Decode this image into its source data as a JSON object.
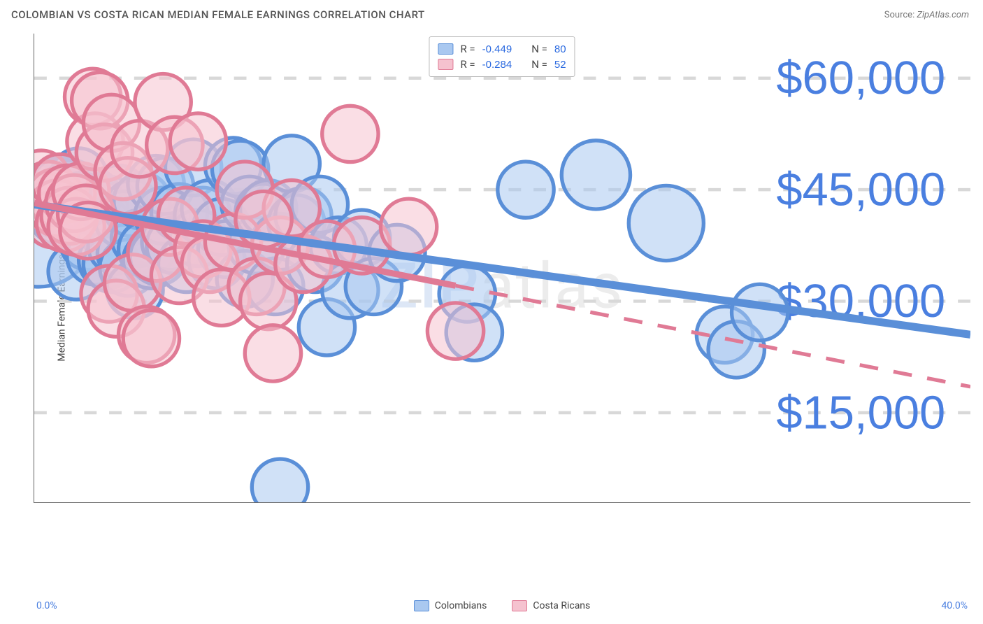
{
  "title": "COLOMBIAN VS COSTA RICAN MEDIAN FEMALE EARNINGS CORRELATION CHART",
  "source_label": "Source:",
  "source_value": "ZipAtlas.com",
  "ylabel": "Median Female Earnings",
  "watermark": {
    "first": "ZIP",
    "rest": "atlas"
  },
  "chart": {
    "type": "scatter",
    "background_color": "#ffffff",
    "grid_color": "#d8d8d8",
    "grid_dash": "4 4",
    "axis_color": "#666666",
    "xlim": [
      0,
      40
    ],
    "ylim": [
      3000,
      66000
    ],
    "y_ticks": [
      15000,
      30000,
      45000,
      60000
    ],
    "y_tick_labels": [
      "$15,000",
      "$30,000",
      "$45,000",
      "$60,000"
    ],
    "y_tick_color": "#4a7fe0",
    "x_tick_min_label": "0.0%",
    "x_tick_max_label": "40.0%",
    "x_tick_color": "#4a7fe0",
    "marker_opacity": 0.55,
    "marker_stroke_width": 1.2,
    "default_marker_radius": 9,
    "series": [
      {
        "name": "Colombians",
        "color_fill": "#a9c8f0",
        "color_stroke": "#5a8fd8",
        "R": "-0.449",
        "N": "80",
        "trend": {
          "x1": 0,
          "y1": 43000,
          "x2": 40,
          "y2": 25500,
          "width": 2.5,
          "dash": null,
          "solid_until_x": 40
        },
        "points": [
          {
            "x": 0.2,
            "y": 39500,
            "r": 18
          },
          {
            "x": 0.3,
            "y": 44500
          },
          {
            "x": 0.5,
            "y": 43500
          },
          {
            "x": 0.6,
            "y": 45000
          },
          {
            "x": 0.8,
            "y": 42500
          },
          {
            "x": 0.9,
            "y": 44000
          },
          {
            "x": 1.0,
            "y": 41500
          },
          {
            "x": 1.1,
            "y": 45500
          },
          {
            "x": 1.2,
            "y": 43000
          },
          {
            "x": 1.3,
            "y": 40500
          },
          {
            "x": 1.4,
            "y": 44800
          },
          {
            "x": 1.5,
            "y": 42000
          },
          {
            "x": 1.6,
            "y": 45200
          },
          {
            "x": 1.8,
            "y": 34000
          },
          {
            "x": 1.9,
            "y": 46800
          },
          {
            "x": 2.0,
            "y": 43500
          },
          {
            "x": 2.2,
            "y": 41500
          },
          {
            "x": 2.3,
            "y": 38000
          },
          {
            "x": 2.5,
            "y": 44000
          },
          {
            "x": 2.6,
            "y": 36000
          },
          {
            "x": 2.8,
            "y": 42500
          },
          {
            "x": 3.0,
            "y": 40000
          },
          {
            "x": 3.1,
            "y": 35500
          },
          {
            "x": 3.2,
            "y": 43000
          },
          {
            "x": 3.3,
            "y": 35000
          },
          {
            "x": 3.5,
            "y": 37500
          },
          {
            "x": 3.6,
            "y": 44500
          },
          {
            "x": 3.8,
            "y": 41000
          },
          {
            "x": 3.9,
            "y": 36500
          },
          {
            "x": 4.0,
            "y": 34500
          },
          {
            "x": 4.2,
            "y": 42500
          },
          {
            "x": 4.3,
            "y": 31500
          },
          {
            "x": 4.5,
            "y": 38500
          },
          {
            "x": 4.6,
            "y": 43500
          },
          {
            "x": 4.8,
            "y": 37000
          },
          {
            "x": 5.0,
            "y": 35500
          },
          {
            "x": 5.2,
            "y": 45800
          },
          {
            "x": 5.3,
            "y": 36000
          },
          {
            "x": 5.5,
            "y": 41500
          },
          {
            "x": 5.6,
            "y": 45500
          },
          {
            "x": 5.8,
            "y": 38000
          },
          {
            "x": 6.0,
            "y": 37500
          },
          {
            "x": 6.2,
            "y": 42000
          },
          {
            "x": 6.5,
            "y": 35000
          },
          {
            "x": 6.8,
            "y": 48000
          },
          {
            "x": 7.0,
            "y": 38500
          },
          {
            "x": 7.2,
            "y": 41500
          },
          {
            "x": 7.5,
            "y": 42500
          },
          {
            "x": 7.8,
            "y": 35500
          },
          {
            "x": 8.0,
            "y": 40000
          },
          {
            "x": 8.2,
            "y": 37000
          },
          {
            "x": 8.5,
            "y": 48200
          },
          {
            "x": 8.8,
            "y": 47800
          },
          {
            "x": 9.0,
            "y": 33000
          },
          {
            "x": 9.2,
            "y": 43000
          },
          {
            "x": 9.5,
            "y": 37500
          },
          {
            "x": 9.8,
            "y": 42000
          },
          {
            "x": 10.0,
            "y": 42500
          },
          {
            "x": 10.3,
            "y": 32000
          },
          {
            "x": 10.5,
            "y": 38000
          },
          {
            "x": 11.0,
            "y": 48500
          },
          {
            "x": 11.2,
            "y": 40500
          },
          {
            "x": 11.5,
            "y": 41500
          },
          {
            "x": 12.0,
            "y": 35000
          },
          {
            "x": 12.2,
            "y": 43000
          },
          {
            "x": 12.5,
            "y": 26500
          },
          {
            "x": 13.0,
            "y": 37500
          },
          {
            "x": 13.5,
            "y": 31500
          },
          {
            "x": 14.0,
            "y": 38500
          },
          {
            "x": 14.5,
            "y": 32000
          },
          {
            "x": 15.5,
            "y": 36500
          },
          {
            "x": 18.5,
            "y": 31000
          },
          {
            "x": 18.8,
            "y": 25800
          },
          {
            "x": 21.0,
            "y": 45000
          },
          {
            "x": 24.0,
            "y": 47000,
            "r": 11
          },
          {
            "x": 27.0,
            "y": 40500,
            "r": 12
          },
          {
            "x": 29.5,
            "y": 25500
          },
          {
            "x": 30.0,
            "y": 23500
          },
          {
            "x": 31.0,
            "y": 28500
          },
          {
            "x": 10.5,
            "y": 5000
          }
        ]
      },
      {
        "name": "Costa Ricans",
        "color_fill": "#f5c2cf",
        "color_stroke": "#e07a95",
        "R": "-0.284",
        "N": "52",
        "trend": {
          "x1": 0,
          "y1": 43200,
          "x2": 40,
          "y2": 18500,
          "width": 2,
          "dash": "6 5",
          "solid_until_x": 18
        },
        "points": [
          {
            "x": 0.3,
            "y": 46500
          },
          {
            "x": 0.5,
            "y": 43500
          },
          {
            "x": 0.6,
            "y": 45000
          },
          {
            "x": 0.8,
            "y": 41000
          },
          {
            "x": 0.9,
            "y": 44000
          },
          {
            "x": 1.0,
            "y": 42500
          },
          {
            "x": 1.1,
            "y": 46000
          },
          {
            "x": 1.3,
            "y": 40500
          },
          {
            "x": 1.4,
            "y": 44500
          },
          {
            "x": 1.5,
            "y": 41500
          },
          {
            "x": 1.7,
            "y": 43200
          },
          {
            "x": 1.8,
            "y": 40000
          },
          {
            "x": 2.0,
            "y": 44800
          },
          {
            "x": 2.2,
            "y": 41800
          },
          {
            "x": 2.3,
            "y": 39500
          },
          {
            "x": 2.5,
            "y": 57500
          },
          {
            "x": 2.6,
            "y": 51500
          },
          {
            "x": 2.8,
            "y": 57000
          },
          {
            "x": 3.0,
            "y": 50000
          },
          {
            "x": 3.2,
            "y": 31000
          },
          {
            "x": 3.3,
            "y": 54000
          },
          {
            "x": 3.5,
            "y": 29000
          },
          {
            "x": 3.8,
            "y": 47500
          },
          {
            "x": 4.0,
            "y": 45500
          },
          {
            "x": 4.2,
            "y": 32500
          },
          {
            "x": 4.5,
            "y": 50500
          },
          {
            "x": 4.8,
            "y": 25500
          },
          {
            "x": 5.0,
            "y": 25000
          },
          {
            "x": 5.2,
            "y": 36500
          },
          {
            "x": 5.5,
            "y": 56800
          },
          {
            "x": 5.8,
            "y": 40000
          },
          {
            "x": 6.0,
            "y": 51000
          },
          {
            "x": 6.2,
            "y": 33500
          },
          {
            "x": 6.5,
            "y": 41500
          },
          {
            "x": 7.0,
            "y": 51500
          },
          {
            "x": 7.2,
            "y": 37000
          },
          {
            "x": 7.5,
            "y": 35000
          },
          {
            "x": 8.0,
            "y": 30500
          },
          {
            "x": 8.5,
            "y": 38000
          },
          {
            "x": 9.0,
            "y": 45000
          },
          {
            "x": 9.5,
            "y": 32000
          },
          {
            "x": 10.0,
            "y": 30000
          },
          {
            "x": 10.2,
            "y": 23000
          },
          {
            "x": 10.5,
            "y": 37500
          },
          {
            "x": 11.0,
            "y": 42500
          },
          {
            "x": 11.5,
            "y": 35000
          },
          {
            "x": 12.5,
            "y": 37000
          },
          {
            "x": 13.5,
            "y": 52500
          },
          {
            "x": 14.0,
            "y": 37500
          },
          {
            "x": 16.0,
            "y": 40000
          },
          {
            "x": 18.0,
            "y": 26000
          },
          {
            "x": 9.8,
            "y": 41000
          }
        ]
      }
    ]
  },
  "bottom_legend": [
    {
      "label": "Colombians",
      "fill": "#a9c8f0",
      "stroke": "#5a8fd8"
    },
    {
      "label": "Costa Ricans",
      "fill": "#f5c2cf",
      "stroke": "#e07a95"
    }
  ]
}
